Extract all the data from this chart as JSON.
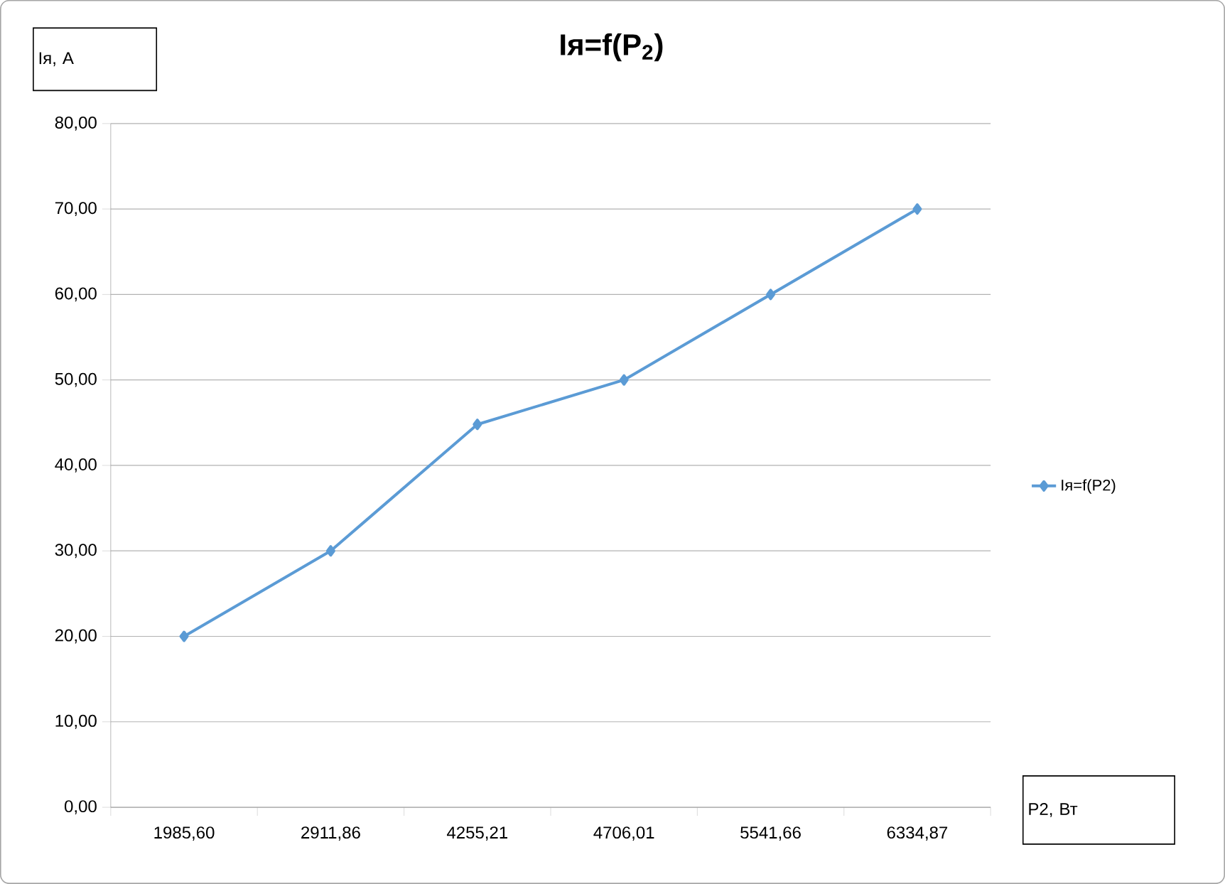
{
  "chart_data": {
    "type": "line",
    "title": "Iя=f(P$_{2}$)",
    "ylabel": "Iя, А",
    "xlabel": "P2, Вт",
    "categories": [
      "1985,60",
      "2911,86",
      "4255,21",
      "4706,01",
      "5541,66",
      "6334,87"
    ],
    "series": [
      {
        "name": "Iя=f(P2)",
        "color": "#5b9bd5",
        "values": [
          20,
          30,
          44.8,
          50,
          60,
          70
        ]
      }
    ],
    "ylim": [
      0,
      80
    ],
    "yticks": [
      {
        "value": 0,
        "label": "0,00"
      },
      {
        "value": 10,
        "label": "10,00"
      },
      {
        "value": 20,
        "label": "20,00"
      },
      {
        "value": 30,
        "label": "30,00"
      },
      {
        "value": 40,
        "label": "40,00"
      },
      {
        "value": 50,
        "label": "50,00"
      },
      {
        "value": 60,
        "label": "60,00"
      },
      {
        "value": 70,
        "label": "70,00"
      },
      {
        "value": 80,
        "label": "80,00"
      }
    ],
    "grid": "y",
    "legend": "right",
    "marker": "diamond",
    "line_style": "solid"
  }
}
